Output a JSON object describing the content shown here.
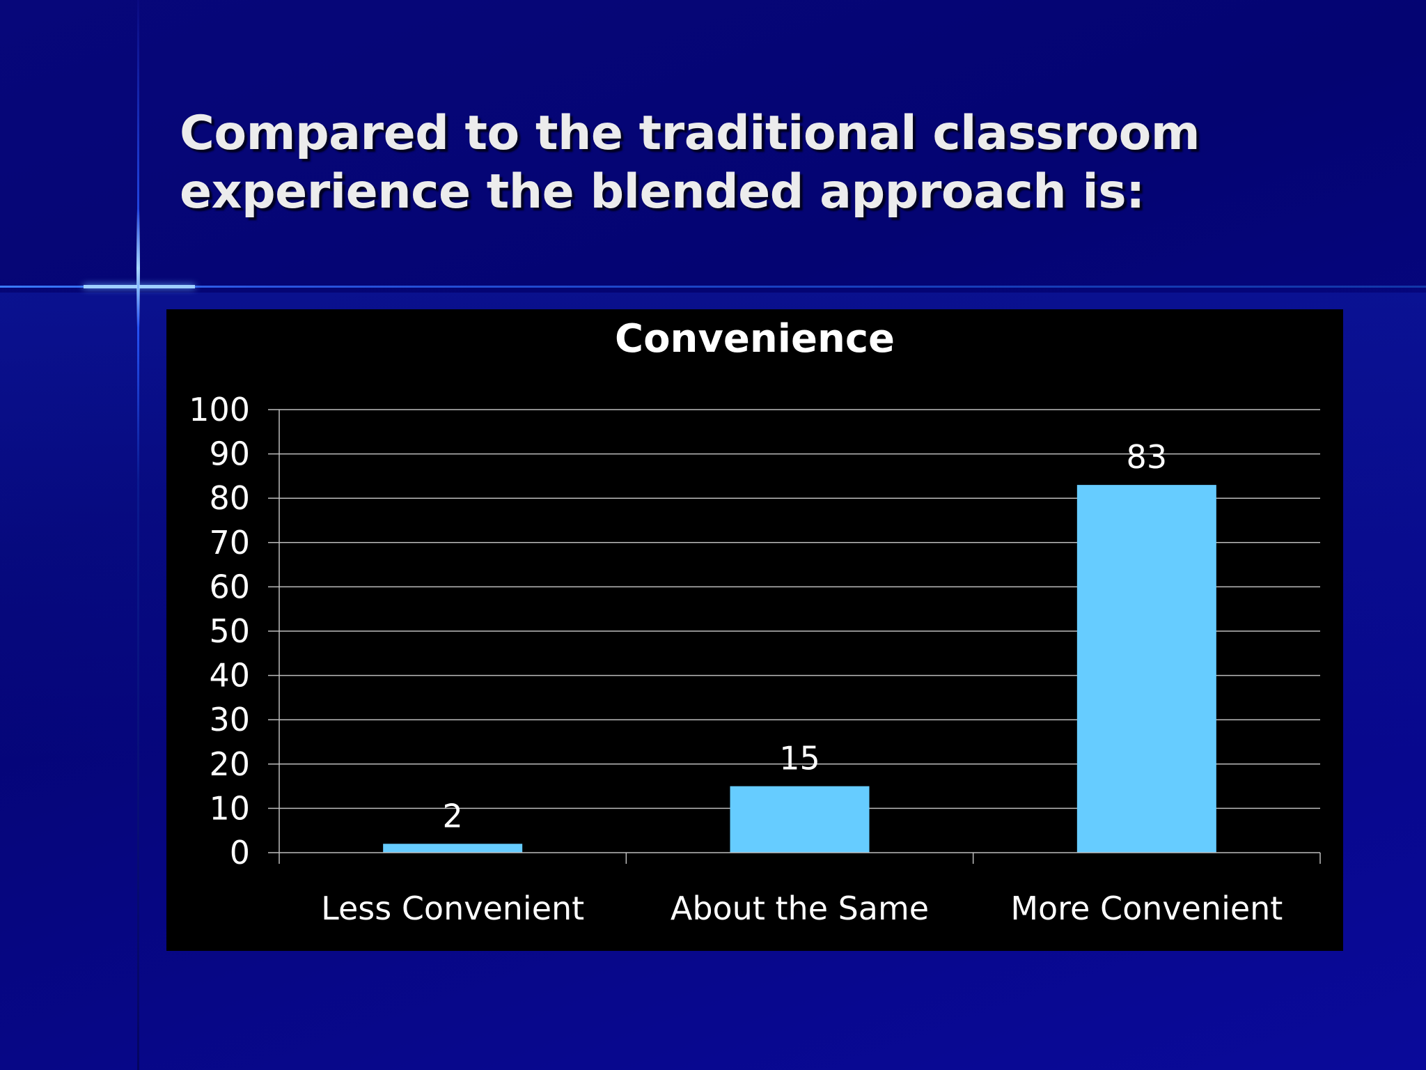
{
  "slide": {
    "title": "Compared to the traditional classroom experience the blended approach is:"
  },
  "colors": {
    "background": "#05056f",
    "panel": "#000000",
    "bar": "#66ccff",
    "text": "#ffffff",
    "title_text": "#ececec"
  },
  "chart_data": {
    "type": "bar",
    "title": "Convenience",
    "categories": [
      "Less Convenient",
      "About the Same",
      "More Convenient"
    ],
    "values": [
      2,
      15,
      83
    ],
    "data_labels": [
      "2",
      "15",
      "83"
    ],
    "xlabel": "",
    "ylabel": "",
    "ylim": [
      0,
      100
    ],
    "yticks": [
      0,
      10,
      20,
      30,
      40,
      50,
      60,
      70,
      80,
      90,
      100
    ],
    "grid": true,
    "legend": "none"
  }
}
